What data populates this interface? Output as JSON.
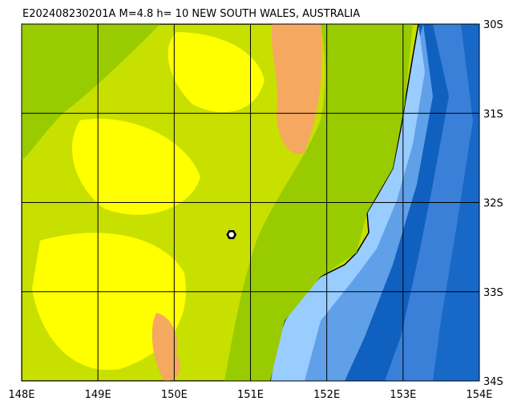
{
  "title": "E202408230201A M=4.8 h= 10 NEW SOUTH WALES, AUSTRALIA",
  "map": {
    "lon_range": [
      148,
      154
    ],
    "lat_range": [
      -30,
      -34
    ],
    "lon_labels": [
      {
        "value": 148,
        "label": "148E"
      },
      {
        "value": 149,
        "label": "149E"
      },
      {
        "value": 150,
        "label": "150E"
      },
      {
        "value": 151,
        "label": "151E"
      },
      {
        "value": 152,
        "label": "152E"
      },
      {
        "value": 153,
        "label": "153E"
      },
      {
        "value": 154,
        "label": "154E"
      }
    ],
    "lat_labels": [
      {
        "value": -30,
        "label": "30S"
      },
      {
        "value": -31,
        "label": "31S"
      },
      {
        "value": -32,
        "label": "32S"
      },
      {
        "value": -33,
        "label": "33S"
      },
      {
        "value": -34,
        "label": "34S"
      }
    ],
    "epicenter": {
      "lon": 150.75,
      "lat": -32.36
    }
  }
}
